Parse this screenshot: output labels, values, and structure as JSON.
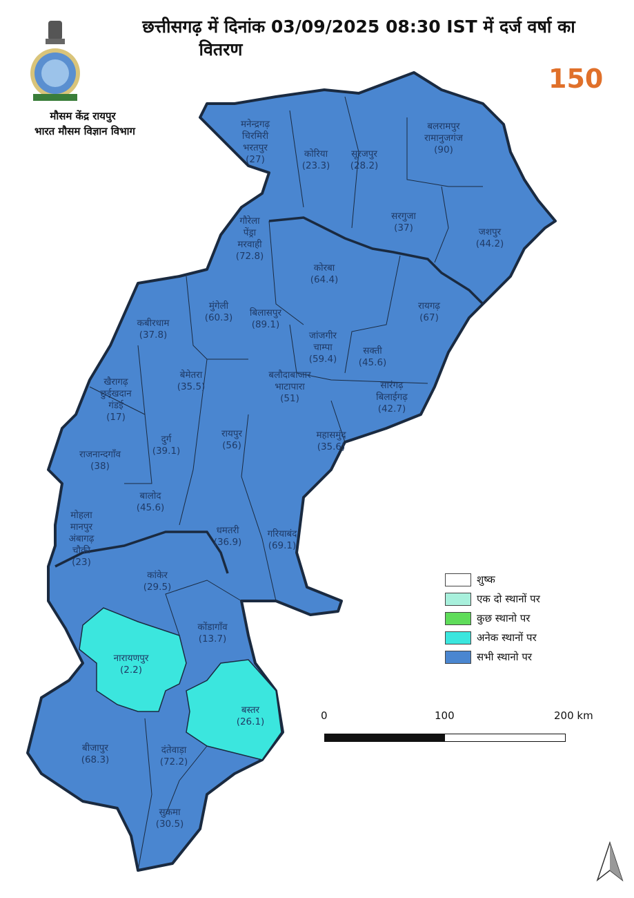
{
  "header": {
    "title_line1": "छत्तीसगढ़ में दिनांक 03/09/2025 08:30 IST में दर्ज  वर्षा का",
    "title_line2": "वितरण",
    "org_line1": "मौसम केंद्र रायपुर",
    "org_line2": "भारत मौसम विज्ञान विभाग",
    "logo_left": "imd-emblem",
    "logo_right": "150"
  },
  "colors": {
    "all_places": "#4a86d0",
    "many_places": "#3be6de",
    "few_places": "#5fdc5a",
    "isolated": "#a8f0dc",
    "dry": "#ffffff",
    "border": "#1a2a40"
  },
  "districts": [
    {
      "name": "मनेन्द्रगढ़ चिरमिरी भरतपुर",
      "value": "(27)",
      "category": "सभी स्थानो पर"
    },
    {
      "name": "कोरिया",
      "value": "(23.3)",
      "category": "सभी स्थानो पर"
    },
    {
      "name": "सूरजपुर",
      "value": "(28.2)",
      "category": "सभी स्थानो पर"
    },
    {
      "name": "बलरामपुर रामानुजगंज",
      "value": "(90)",
      "category": "सभी स्थानो पर"
    },
    {
      "name": "सरगुजा",
      "value": "(37)",
      "category": "सभी स्थानो पर"
    },
    {
      "name": "जशपुर",
      "value": "(44.2)",
      "category": "सभी स्थानो पर"
    },
    {
      "name": "गौरेला पेंड्रा मरवाही",
      "value": "(72.8)",
      "category": "सभी स्थानो पर"
    },
    {
      "name": "कोरबा",
      "value": "(64.4)",
      "category": "सभी स्थानो पर"
    },
    {
      "name": "मुंगेली",
      "value": "(60.3)",
      "category": "सभी स्थानो पर"
    },
    {
      "name": "बिलासपुर",
      "value": "(89.1)",
      "category": "सभी स्थानो पर"
    },
    {
      "name": "कबीरधाम",
      "value": "(37.8)",
      "category": "सभी स्थानो पर"
    },
    {
      "name": "रायगढ़",
      "value": "(67)",
      "category": "सभी स्थानो पर"
    },
    {
      "name": "जांजगीर चाम्पा",
      "value": "(59.4)",
      "category": "सभी स्थानो पर"
    },
    {
      "name": "सक्ती",
      "value": "(45.6)",
      "category": "सभी स्थानो पर"
    },
    {
      "name": "खैरागढ़ छुईखदान गंडई",
      "value": "(17)",
      "category": "सभी स्थानो पर"
    },
    {
      "name": "बेमेतरा",
      "value": "(35.5)",
      "category": "सभी स्थानो पर"
    },
    {
      "name": "बलौदाबाजार भाटापारा",
      "value": "(51)",
      "category": "सभी स्थानो पर"
    },
    {
      "name": "सारंगढ़ बिलाईगढ़",
      "value": "(42.7)",
      "category": "सभी स्थानो पर"
    },
    {
      "name": "दुर्ग",
      "value": "(39.1)",
      "category": "सभी स्थानो पर"
    },
    {
      "name": "रायपुर",
      "value": "(56)",
      "category": "सभी स्थानो पर"
    },
    {
      "name": "महासमुंद",
      "value": "(35.6)",
      "category": "सभी स्थानो पर"
    },
    {
      "name": "राजनान्दगाँव",
      "value": "(38)",
      "category": "सभी स्थानो पर"
    },
    {
      "name": "बालोद",
      "value": "(45.6)",
      "category": "सभी स्थानो पर"
    },
    {
      "name": "मोहला मानपुर अंबागढ़ चौकी",
      "value": "(23)",
      "category": "सभी स्थानो पर"
    },
    {
      "name": "धमतरी",
      "value": "(36.9)",
      "category": "सभी स्थानो पर"
    },
    {
      "name": "गरियाबंद",
      "value": "(69.1)",
      "category": "सभी स्थानो पर"
    },
    {
      "name": "कांकेर",
      "value": "(29.5)",
      "category": "सभी स्थानो पर"
    },
    {
      "name": "कोंडागाँव",
      "value": "(13.7)",
      "category": "सभी स्थानो पर"
    },
    {
      "name": "नारायणपुर",
      "value": "(2.2)",
      "category": "अनेक स्थानों पर"
    },
    {
      "name": "बस्तर",
      "value": "(26.1)",
      "category": "अनेक स्थानों पर"
    },
    {
      "name": "बीजापुर",
      "value": "(68.3)",
      "category": "सभी स्थानो पर"
    },
    {
      "name": "दंतेवाड़ा",
      "value": "(72.2)",
      "category": "सभी स्थानो पर"
    },
    {
      "name": "सुकमा",
      "value": "(30.5)",
      "category": "सभी स्थानो पर"
    }
  ],
  "legend": [
    {
      "label": "शुष्क",
      "color": "#ffffff"
    },
    {
      "label": " एक दो स्थानों पर",
      "color": "#a8f0dc"
    },
    {
      "label": "कुछ स्थानो पर",
      "color": "#5fdc5a"
    },
    {
      "label": "अनेक स्थानों पर",
      "color": "#3be6de"
    },
    {
      "label": "सभी स्थानो पर",
      "color": "#4a86d0"
    }
  ],
  "scale_bar": {
    "labels": [
      "0",
      "100",
      "200 km"
    ]
  },
  "north_arrow": "north-arrow-icon"
}
